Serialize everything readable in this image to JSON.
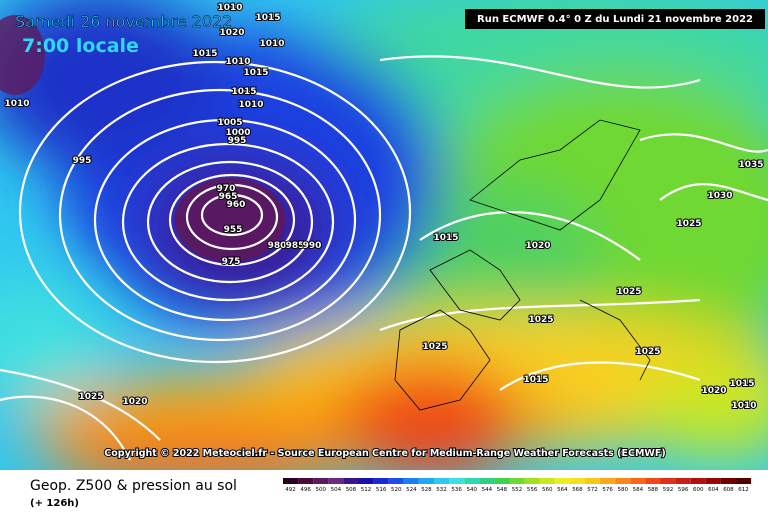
{
  "header": {
    "date": "Samedi 26 novembre 2022",
    "time": "7:00 locale",
    "run": "Run ECMWF 0.4° 0 Z du Lundi 21 novembre 2022"
  },
  "copyright": "Copyright © 2022 Meteociel.fr - Source European Centre for Medium-Range Weather Forecasts (ECMWF)",
  "isobar_labels": [
    "1010",
    "1015",
    "1020",
    "1010",
    "1015",
    "1010",
    "1015",
    "1010",
    "1015",
    "1010",
    "1005",
    "1000",
    "995",
    "995",
    "970",
    "965",
    "960",
    "955",
    "980",
    "985",
    "990",
    "975",
    "1015",
    "1020",
    "1025",
    "1030",
    "1035",
    "1025",
    "1025",
    "1025",
    "1025",
    "1015",
    "1020",
    "1015",
    "1010",
    "1025",
    "1020"
  ],
  "footer": {
    "title": "Geop. Z500 & pression au sol",
    "lead": "(+ 126h)"
  },
  "scale": {
    "values": [
      492,
      496,
      500,
      504,
      508,
      512,
      516,
      520,
      524,
      528,
      532,
      536,
      540,
      544,
      548,
      552,
      556,
      560,
      564,
      568,
      572,
      576,
      580,
      584,
      588,
      592,
      596,
      600,
      604,
      608,
      612
    ],
    "colors": [
      "#2a0020",
      "#4a0a3a",
      "#5c1a5c",
      "#6a2a80",
      "#3a1490",
      "#1a10b0",
      "#1a2ad0",
      "#1a50e8",
      "#1a80f0",
      "#20a8f0",
      "#30c8f0",
      "#40e0e0",
      "#30d8b0",
      "#30d080",
      "#40d050",
      "#70d830",
      "#a0e020",
      "#c8e820",
      "#e8f020",
      "#f8e020",
      "#f8c818",
      "#f8a818",
      "#f88818",
      "#f86818",
      "#f04818",
      "#e03018",
      "#c82018",
      "#b01010",
      "#900808",
      "#700000",
      "#500000"
    ]
  }
}
